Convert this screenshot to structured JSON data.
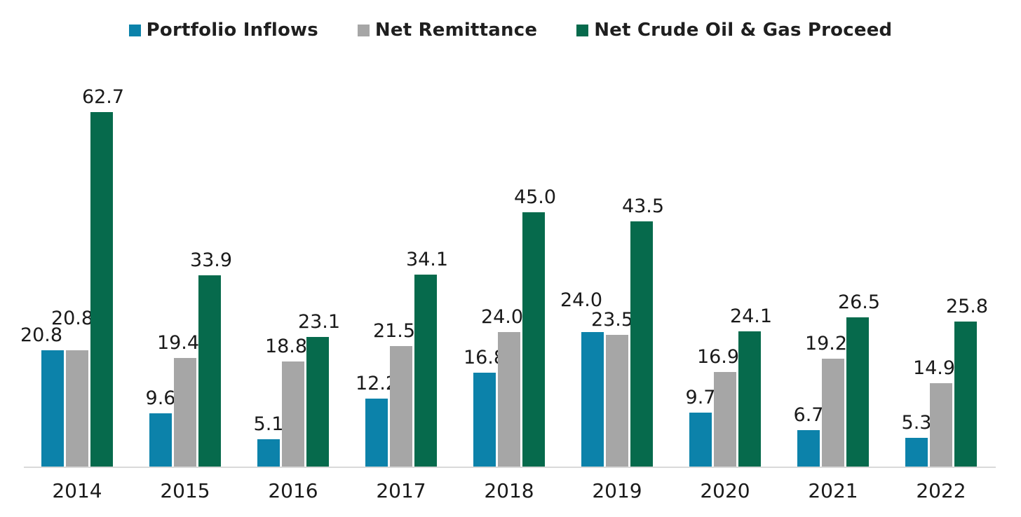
{
  "chart_data": {
    "type": "bar",
    "title": "",
    "xlabel": "",
    "ylabel": "",
    "ylim": [
      0,
      70
    ],
    "grid": false,
    "legend_position": "top",
    "value_label_format": "one_decimal",
    "axis_line_color": "#d9d9d9",
    "label_text_color": "#1a1a1a",
    "categories": [
      "2014",
      "2015",
      "2016",
      "2017",
      "2018",
      "2019",
      "2020",
      "2021",
      "2022"
    ],
    "series": [
      {
        "name": "Portfolio Inflows",
        "color": "#0c82aa",
        "values": [
          20.8,
          9.6,
          5.1,
          12.2,
          16.8,
          24.0,
          9.7,
          6.7,
          5.3
        ]
      },
      {
        "name": "Net Remittance",
        "color": "#a6a6a6",
        "values": [
          20.8,
          19.4,
          18.8,
          21.5,
          24.0,
          23.5,
          16.9,
          19.2,
          14.9
        ]
      },
      {
        "name": "Net Crude Oil & Gas Proceed",
        "color": "#066a4c",
        "values": [
          62.7,
          33.9,
          23.1,
          34.1,
          45.0,
          43.5,
          24.1,
          26.5,
          25.8
        ]
      }
    ]
  }
}
